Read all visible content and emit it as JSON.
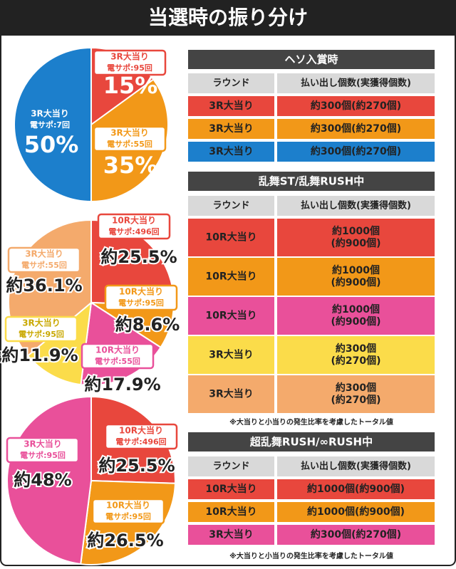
{
  "title": "当選時の振り分け",
  "chart_data": [
    {
      "type": "pie",
      "categories": [
        "3R大当り",
        "3R大当り",
        "3R大当り"
      ],
      "support": [
        "電サポ:95回",
        "電サポ:55回",
        "電サポ:7回"
      ],
      "values": [
        15,
        35,
        50
      ],
      "value_labels": [
        "15%",
        "35%",
        "50%"
      ],
      "colors": [
        "#e8473d",
        "#f29818",
        "#1c7fcc"
      ]
    },
    {
      "type": "pie",
      "categories": [
        "10R大当り",
        "10R大当り",
        "10R大当り",
        "3R大当り",
        "3R大当り"
      ],
      "support": [
        "電サポ:496回",
        "電サポ:95回",
        "電サポ:55回",
        "電サポ:95回",
        "電サポ:55回"
      ],
      "values": [
        25.5,
        8.6,
        17.9,
        11.9,
        36.1
      ],
      "value_labels": [
        "約25.5%",
        "約8.6%",
        "約17.9%",
        "約11.9%",
        "約36.1%"
      ],
      "colors": [
        "#e8473d",
        "#f29818",
        "#e9509a",
        "#fbdc4a",
        "#f4aa6c"
      ]
    },
    {
      "type": "pie",
      "categories": [
        "10R大当り",
        "10R大当り",
        "3R大当り"
      ],
      "support": [
        "電サポ:496回",
        "電サポ:95回",
        "電サポ:95回"
      ],
      "values": [
        25.5,
        26.5,
        48
      ],
      "value_labels": [
        "約25.5%",
        "約26.5%",
        "約48%"
      ],
      "colors": [
        "#e8473d",
        "#f29818",
        "#e9509a"
      ]
    }
  ],
  "tables": [
    {
      "title": "ヘソ入賞時",
      "columns": [
        "ラウンド",
        "払い出し個数(実獲得個数)"
      ],
      "rows": [
        [
          "3R大当り",
          [
            "約300個(約270個)"
          ]
        ],
        [
          "3R大当り",
          [
            "約300個(約270個)"
          ]
        ],
        [
          "3R大当り",
          [
            "約300個(約270個)"
          ]
        ]
      ],
      "row_colors": [
        "#e8473d",
        "#f29818",
        "#1c7fcc"
      ]
    },
    {
      "title": "乱舞ST/乱舞RUSH中",
      "columns": [
        "ラウンド",
        "払い出し個数(実獲得個数)"
      ],
      "rows": [
        [
          "10R大当り",
          [
            "約1000個",
            "(約900個)"
          ]
        ],
        [
          "10R大当り",
          [
            "約1000個",
            "(約900個)"
          ]
        ],
        [
          "10R大当り",
          [
            "約1000個",
            "(約900個)"
          ]
        ],
        [
          "3R大当り",
          [
            "約300個",
            "(約270個)"
          ]
        ],
        [
          "3R大当り",
          [
            "約300個",
            "(約270個)"
          ]
        ]
      ],
      "row_colors": [
        "#e8473d",
        "#f29818",
        "#e9509a",
        "#fbdc4a",
        "#f4aa6c"
      ],
      "note": "※大当りと小当りの発生比率を考慮したトータル値"
    },
    {
      "title": "超乱舞RUSH/∞RUSH中",
      "columns": [
        "ラウンド",
        "払い出し個数(実獲得個数)"
      ],
      "rows": [
        [
          "10R大当り",
          [
            "約1000個(約900個)"
          ]
        ],
        [
          "10R大当り",
          [
            "約1000個(約900個)"
          ]
        ],
        [
          "3R大当り",
          [
            "約300個(約270個)"
          ]
        ]
      ],
      "row_colors": [
        "#e8473d",
        "#f29818",
        "#e9509a"
      ],
      "note": "※大当りと小当りの発生比率を考慮したトータル値"
    }
  ]
}
